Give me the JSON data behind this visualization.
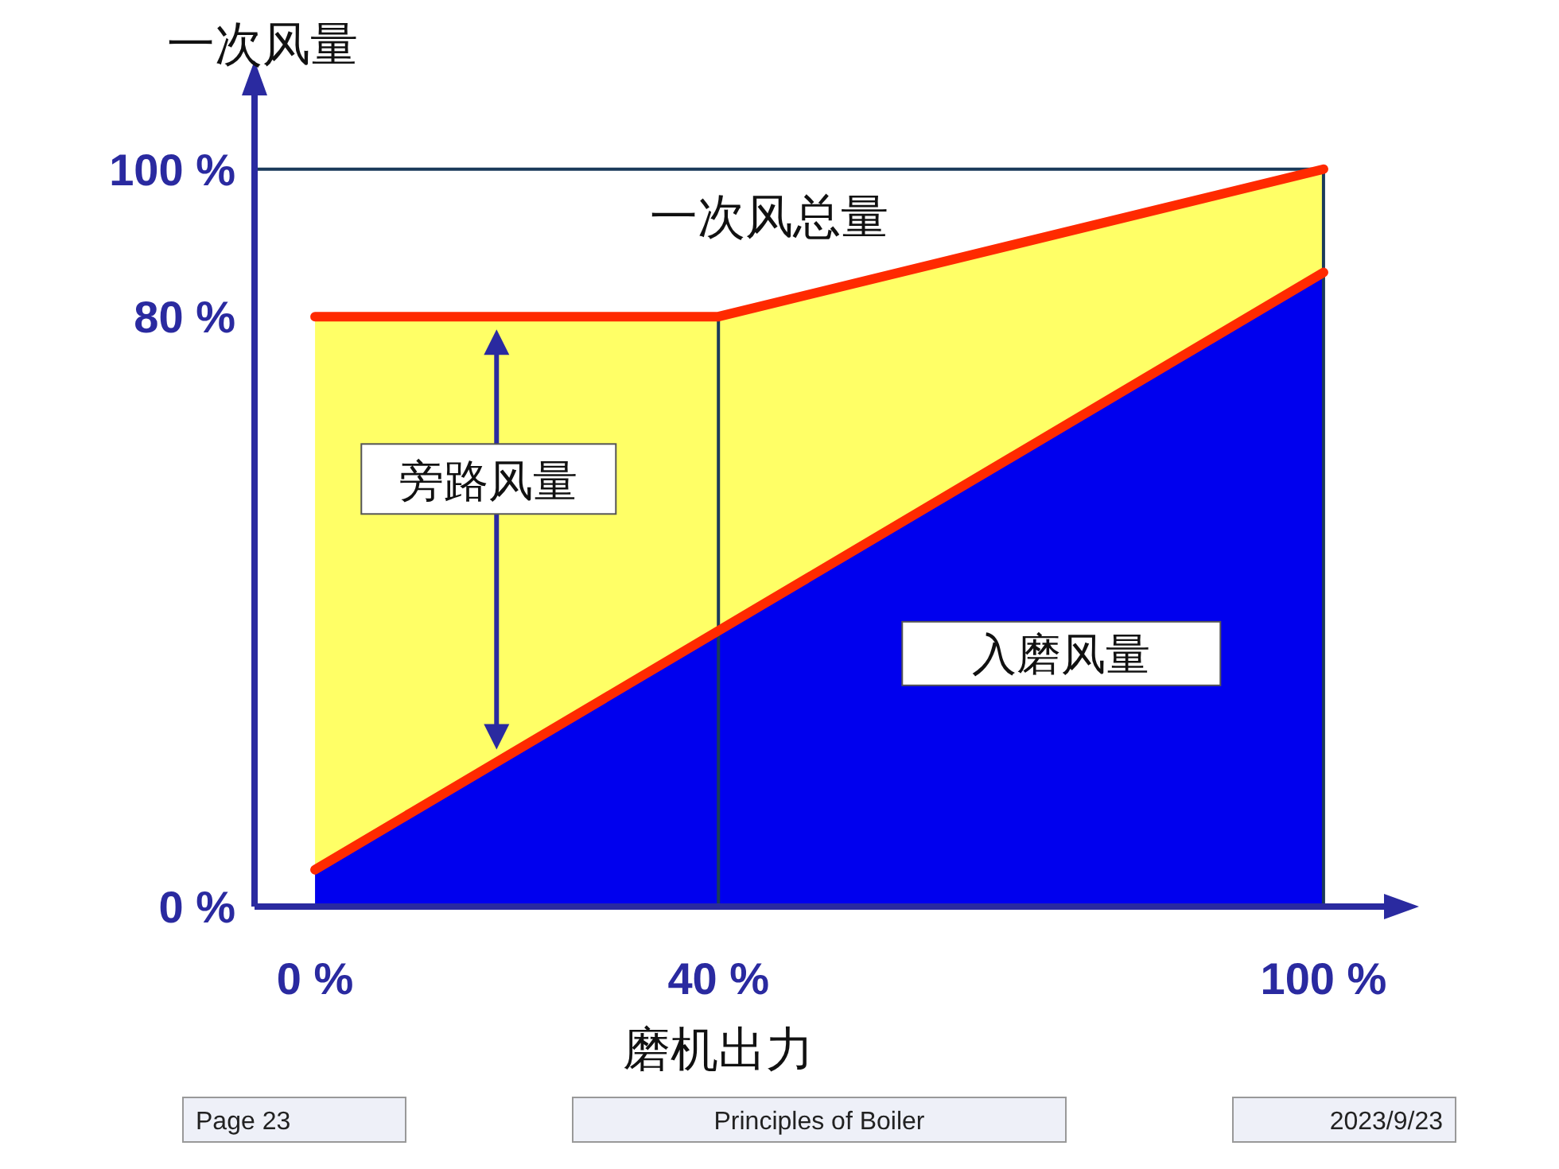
{
  "chart_data": {
    "type": "area",
    "xlabel": "磨机出力",
    "ylabel": "一次风量",
    "xlim": [
      -6,
      106
    ],
    "ylim": [
      0,
      110
    ],
    "xticks": [
      {
        "value": 0,
        "label": "0 %"
      },
      {
        "value": 40,
        "label": "40 %"
      },
      {
        "value": 100,
        "label": "100 %"
      }
    ],
    "yticks": [
      {
        "value": 0,
        "label": "0 %"
      },
      {
        "value": 80,
        "label": "80 %"
      },
      {
        "value": 100,
        "label": "100 %"
      }
    ],
    "series": [
      {
        "name": "一次风总量",
        "color": "#ffff66",
        "x": [
          0,
          40,
          100
        ],
        "values": [
          80,
          80,
          100
        ]
      },
      {
        "name": "入磨风量",
        "color": "#0000ee",
        "x": [
          0,
          100
        ],
        "values": [
          5,
          86
        ]
      },
      {
        "type": "line",
        "color": "#ff2a00",
        "x": [
          0,
          100
        ],
        "values": [
          5,
          86
        ]
      }
    ],
    "ref_lines": [
      {
        "axis": "x",
        "value": 40,
        "color": "#1a3a5a"
      },
      {
        "axis": "x",
        "value": 100,
        "color": "#1a3a5a"
      },
      {
        "axis": "y",
        "value": 100,
        "color": "#1a3a5a"
      }
    ],
    "annotations": [
      "旁路风量",
      "Page 23",
      "Principles of Boiler",
      "2023/9/23"
    ],
    "grid": false,
    "legend": false
  }
}
